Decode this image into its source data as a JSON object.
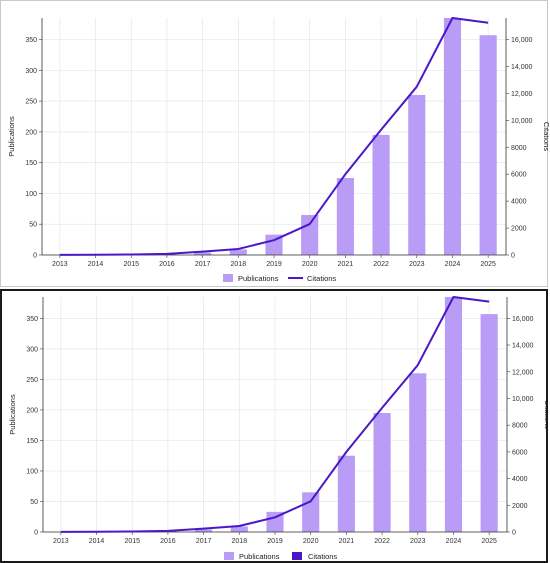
{
  "chart_data": [
    {
      "type": "bar",
      "categories": [
        "2013",
        "2014",
        "2015",
        "2016",
        "2017",
        "2018",
        "2019",
        "2020",
        "2021",
        "2022",
        "2023",
        "2024",
        "2025"
      ],
      "ylabel": "Publications",
      "y2label": "Citations",
      "ylim": [
        0,
        385
      ],
      "y2lim": [
        0,
        17600
      ],
      "yticks": [
        "0",
        "50",
        "100",
        "150",
        "200",
        "250",
        "300",
        "350"
      ],
      "y2ticks": [
        "0",
        "2000",
        "4000",
        "6000",
        "8000",
        "10,000",
        "12,000",
        "14,000",
        "16,000"
      ],
      "grid": true,
      "legend_position": "bottom-center",
      "series": [
        {
          "name": "Publications",
          "type": "bar",
          "axis": "left",
          "color": "#b89cf5",
          "values": [
            0,
            1,
            1,
            2,
            4,
            9,
            33,
            65,
            125,
            195,
            260,
            385,
            357
          ]
        },
        {
          "name": "Citations",
          "type": "line",
          "axis": "right",
          "color": "#4a18c9",
          "values": [
            5,
            15,
            40,
            80,
            250,
            450,
            1100,
            2300,
            6000,
            9300,
            12500,
            17600,
            17250
          ]
        }
      ]
    },
    {
      "type": "bar",
      "categories": [
        "2013",
        "2014",
        "2015",
        "2016",
        "2017",
        "2018",
        "2019",
        "2020",
        "2021",
        "2022",
        "2023",
        "2024",
        "2025"
      ],
      "ylabel": "Publications",
      "y2label": "Citations",
      "ylim": [
        0,
        385
      ],
      "y2lim": [
        0,
        17600
      ],
      "yticks": [
        "0",
        "50",
        "100",
        "150",
        "200",
        "250",
        "300",
        "350"
      ],
      "y2ticks": [
        "0",
        "2000",
        "4000",
        "6000",
        "8000",
        "10,000",
        "12,000",
        "14,000",
        "16,000"
      ],
      "grid": true,
      "legend_position": "bottom-center",
      "series": [
        {
          "name": "Publications",
          "type": "bar",
          "axis": "left",
          "color": "#b89cf5",
          "values": [
            0,
            1,
            1,
            2,
            4,
            9,
            33,
            65,
            125,
            195,
            260,
            385,
            357
          ]
        },
        {
          "name": "Citations",
          "type": "line",
          "axis": "right",
          "color": "#4a18c9",
          "values": [
            5,
            15,
            40,
            80,
            250,
            450,
            1100,
            2300,
            6000,
            9300,
            12500,
            17600,
            17250
          ]
        }
      ]
    }
  ]
}
